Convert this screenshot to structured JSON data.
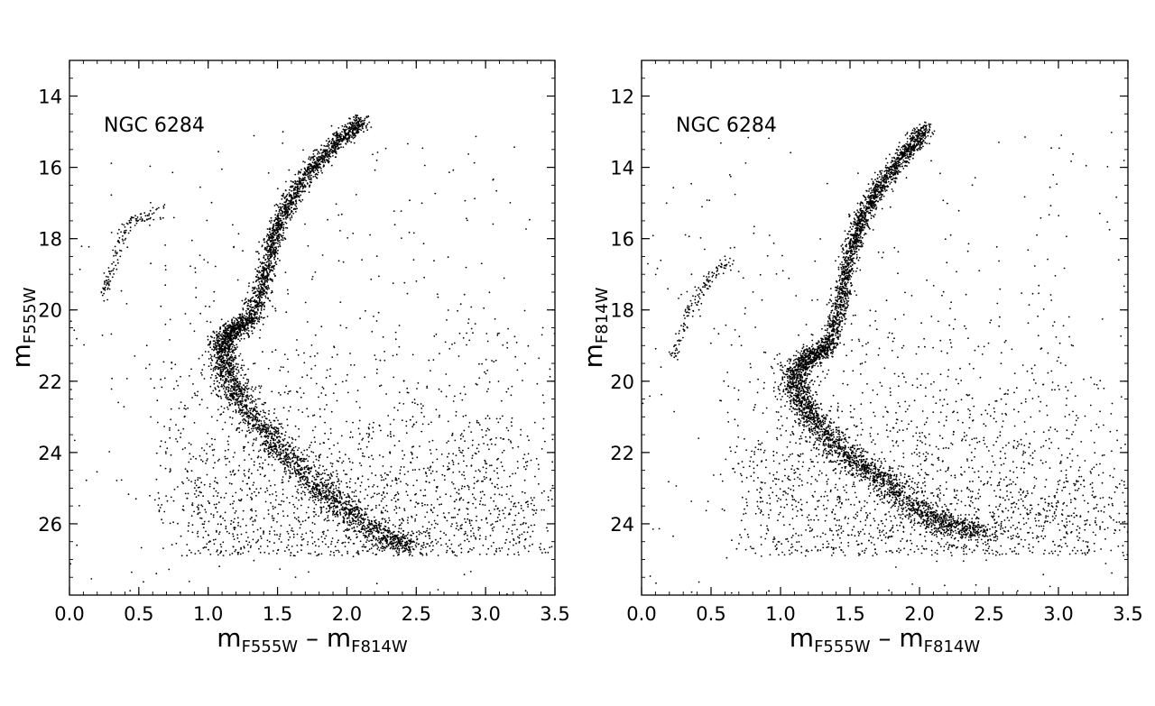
{
  "chart_data": [
    {
      "type": "scatter",
      "annotation": "NGC 6284",
      "xlabel": {
        "base": "m",
        "sub1": "F555W",
        "dash": " – m",
        "sub2": "F814W"
      },
      "ylabel": {
        "base": "m",
        "sub": "F555W"
      },
      "xlim": [
        0.0,
        3.5
      ],
      "ylim": [
        28.0,
        13.0
      ],
      "y_inverted": true,
      "xticks": [
        "0.0",
        "0.5",
        "1.0",
        "1.5",
        "2.0",
        "2.5",
        "3.0",
        "3.5"
      ],
      "yticks": [
        "14",
        "16",
        "18",
        "20",
        "22",
        "24",
        "26"
      ],
      "grid": false,
      "point_color": "#000000",
      "ridge": [
        [
          2.45,
          26.7
        ],
        [
          2.2,
          26.2
        ],
        [
          1.95,
          25.5
        ],
        [
          1.7,
          24.6
        ],
        [
          1.45,
          23.6
        ],
        [
          1.25,
          22.6
        ],
        [
          1.14,
          21.8
        ],
        [
          1.1,
          21.1
        ],
        [
          1.15,
          20.6
        ],
        [
          1.3,
          20.3
        ],
        [
          1.4,
          19.2
        ],
        [
          1.47,
          18.0
        ],
        [
          1.58,
          17.0
        ],
        [
          1.75,
          16.0
        ],
        [
          1.95,
          15.2
        ],
        [
          2.12,
          14.7
        ]
      ],
      "horizontal_branch": [
        [
          0.25,
          19.6
        ],
        [
          0.3,
          18.9
        ],
        [
          0.37,
          18.0
        ],
        [
          0.45,
          17.5
        ],
        [
          0.55,
          17.4
        ],
        [
          0.68,
          17.2
        ]
      ]
    },
    {
      "type": "scatter",
      "annotation": "NGC 6284",
      "xlabel": {
        "base": "m",
        "sub1": "F555W",
        "dash": " – m",
        "sub2": "F814W"
      },
      "ylabel": {
        "base": "m",
        "sub": "F814W"
      },
      "xlim": [
        0.0,
        3.5
      ],
      "ylim": [
        26.0,
        11.0
      ],
      "y_inverted": true,
      "xticks": [
        "0.0",
        "0.5",
        "1.0",
        "1.5",
        "2.0",
        "2.5",
        "3.0",
        "3.5"
      ],
      "yticks": [
        "12",
        "14",
        "16",
        "18",
        "20",
        "22",
        "24"
      ],
      "grid": false,
      "point_color": "#000000",
      "ridge": [
        [
          2.45,
          24.3
        ],
        [
          2.2,
          24.0
        ],
        [
          1.95,
          23.5
        ],
        [
          1.7,
          22.7
        ],
        [
          1.45,
          22.0
        ],
        [
          1.25,
          21.2
        ],
        [
          1.14,
          20.5
        ],
        [
          1.1,
          19.8
        ],
        [
          1.2,
          19.3
        ],
        [
          1.35,
          19.0
        ],
        [
          1.45,
          17.6
        ],
        [
          1.5,
          16.4
        ],
        [
          1.58,
          15.5
        ],
        [
          1.72,
          14.5
        ],
        [
          1.9,
          13.6
        ],
        [
          2.05,
          12.9
        ]
      ],
      "horizontal_branch": [
        [
          0.22,
          19.4
        ],
        [
          0.28,
          18.8
        ],
        [
          0.35,
          18.0
        ],
        [
          0.43,
          17.4
        ],
        [
          0.52,
          17.0
        ],
        [
          0.65,
          16.6
        ]
      ]
    }
  ]
}
